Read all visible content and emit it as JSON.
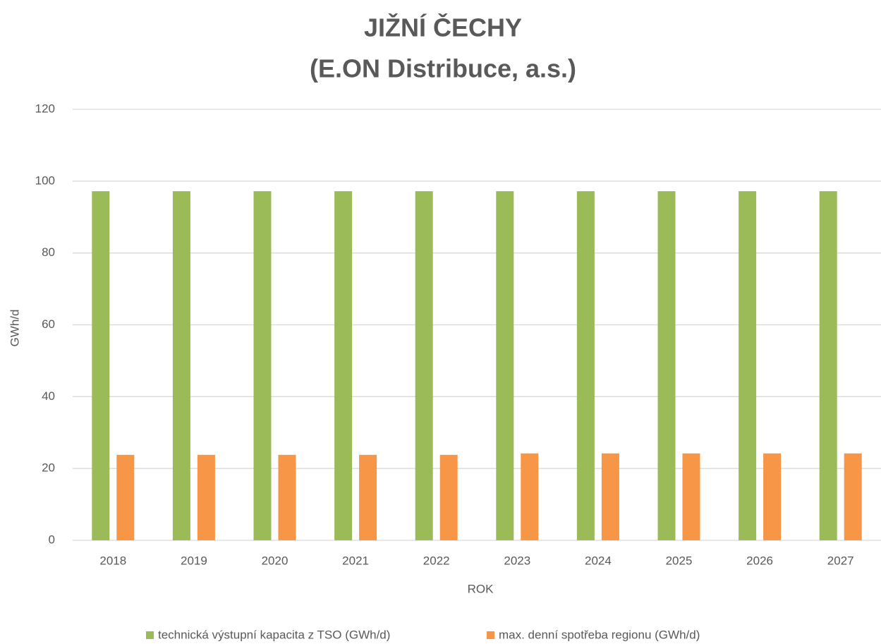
{
  "chart_data": {
    "type": "bar",
    "title": "JIŽNÍ ČECHY",
    "subtitle": "(E.ON Distribuce, a.s.)",
    "x_label": "ROK",
    "y_label": "GWh/d",
    "categories": [
      "2018",
      "2019",
      "2020",
      "2021",
      "2022",
      "2023",
      "2024",
      "2025",
      "2026",
      "2027"
    ],
    "series": [
      {
        "name": "technická výstupní kapacita z TSO (GWh/d)",
        "color": "#9bbb59",
        "values": [
          97.2,
          97.2,
          97.2,
          97.2,
          97.2,
          97.2,
          97.2,
          97.2,
          97.2,
          97.2
        ]
      },
      {
        "name": "max. denní spotřeba regionu (GWh/d)",
        "color": "#f79646",
        "values": [
          23.8,
          23.8,
          23.8,
          23.8,
          23.8,
          24.2,
          24.2,
          24.2,
          24.2,
          24.2
        ]
      }
    ],
    "ylim": [
      0,
      120
    ],
    "yticks": [
      0,
      20,
      40,
      60,
      80,
      100,
      120
    ],
    "grid": true,
    "legend": "bottom"
  }
}
